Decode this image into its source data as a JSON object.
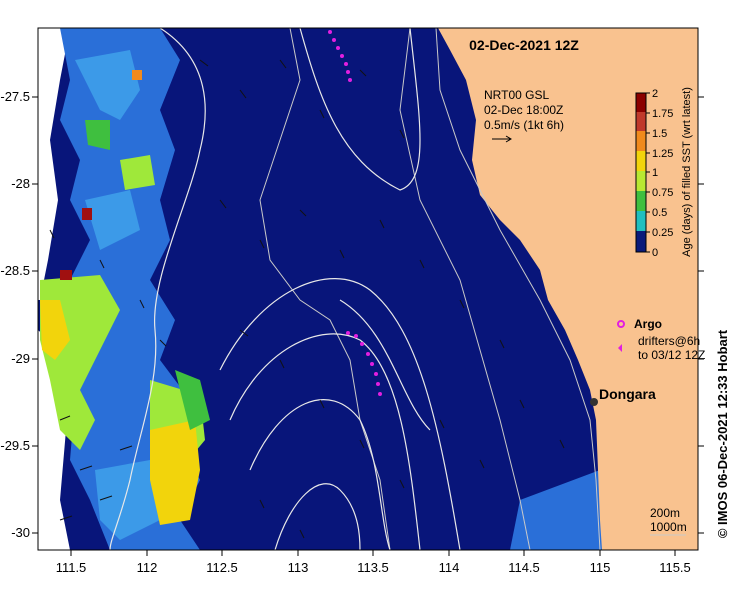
{
  "map": {
    "title": "02-Dec-2021 12Z",
    "x_ticks": [
      "111.5",
      "112",
      "112.5",
      "113",
      "113.5",
      "114",
      "114.5",
      "115",
      "115.5"
    ],
    "y_ticks": [
      "-27.5",
      "-28",
      "-28.5",
      "-29",
      "-29.5",
      "-30"
    ],
    "current_ref": {
      "line1": "NRT00 GSL",
      "line2": "02-Dec 18:00Z",
      "line3": "0.5m/s (1kt 6h)"
    },
    "colorbar": {
      "label": "Age (days) of filled SST (wrt latest)",
      "ticks": [
        "2",
        "1.75",
        "1.5",
        "1.25",
        "1",
        "0.75",
        "0.5",
        "0.25",
        "0"
      ],
      "colors": [
        "#8b0000",
        "#c0392b",
        "#f08a1c",
        "#f2d40c",
        "#b8e832",
        "#3fbf3f",
        "#1fbfbf",
        "#2a7de1",
        "#0a1a7a"
      ]
    },
    "legend": {
      "argo": "Argo",
      "drifters_line1": "drifters@6h",
      "drifters_line2": "to 03/12 12Z"
    },
    "place": {
      "name": "Dongara"
    },
    "depth": {
      "c200": "200m",
      "c1000": "1000m"
    },
    "credit": "© IMOS 06-Dec-2021 12:33 Hobart",
    "colors": {
      "ocean": "#08157a",
      "land": "#f9c28f",
      "argo": "#e21fe0",
      "marker": "#333333"
    }
  }
}
